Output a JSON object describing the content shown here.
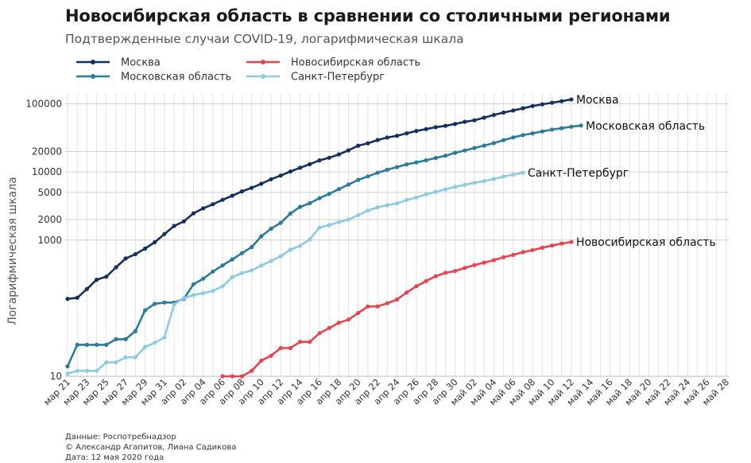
{
  "chart_data": {
    "type": "line",
    "title": "Новосибирская область в сравнении со столичными регионами",
    "subtitle": "Подтвержденные случаи COVID-19, логарифмическая шкала",
    "ylabel": "Логарифмическая шкала",
    "xlabel": "",
    "yscale": "log",
    "ylim": [
      10,
      140000
    ],
    "yticks": [
      10,
      1000,
      2000,
      5000,
      10000,
      20000,
      100000
    ],
    "x_tick_labels": [
      "мар 21",
      "мар 23",
      "мар 25",
      "мар 27",
      "мар 29",
      "мар 31",
      "апр 02",
      "апр 04",
      "апр 06",
      "апр 08",
      "апр 10",
      "апр 12",
      "апр 14",
      "апр 16",
      "апр 18",
      "апр 20",
      "апр 22",
      "апр 24",
      "апр 26",
      "апр 28",
      "апр 30",
      "май 02",
      "май 04",
      "май 06",
      "май 08",
      "май 10",
      "май 12",
      "май 14",
      "май 16",
      "май 18",
      "май 20",
      "май 22",
      "май 24",
      "май 26",
      "май 28"
    ],
    "legend_position": "top-left",
    "grid": true,
    "series": [
      {
        "name": "Москва",
        "color": "#14305e",
        "start_day": 0,
        "values": [
          137,
          142,
          191,
          262,
          290,
          398,
          536,
          620,
          750,
          930,
          1226,
          1613,
          1880,
          2475,
          2923,
          3357,
          3893,
          4484,
          5181,
          5841,
          6698,
          7822,
          8852,
          10158,
          11513,
          13002,
          14776,
          16146,
          18105,
          20754,
          24324,
          26350,
          29433,
          31981,
          33940,
          36897,
          40014,
          42480,
          45351,
          47520,
          50646,
          54520,
          57300,
          62658,
          68606,
          74401,
          79820,
          85973,
          92676,
          98522,
          103945,
          109208,
          115909
        ]
      },
      {
        "name": "Московская область",
        "color": "#2b7b9b",
        "start_day": 0,
        "values": [
          14,
          29,
          29,
          29,
          29,
          35,
          35,
          46,
          93,
          116,
          121,
          121,
          137,
          225,
          271,
          345,
          425,
          521,
          641,
          788,
          1135,
          1469,
          1791,
          2450,
          3071,
          3477,
          4117,
          4763,
          5593,
          6535,
          7640,
          8614,
          9718,
          10751,
          11780,
          12921,
          13785,
          14834,
          16085,
          17313,
          19089,
          20659,
          22470,
          24397,
          26530,
          29235,
          32174,
          34698,
          36897,
          39394,
          41875,
          43920,
          46050,
          48000
        ]
      },
      {
        "name": "Санкт-Петербург",
        "color": "#8ecbe0",
        "start_day": 0,
        "values": [
          11,
          12,
          12,
          12,
          16,
          16,
          19,
          19,
          27,
          31,
          37,
          113,
          141,
          156,
          166,
          179,
          210,
          285,
          327,
          358,
          422,
          493,
          580,
          722,
          820,
          1025,
          1523,
          1661,
          1833,
          2007,
          2333,
          2710,
          3022,
          3245,
          3459,
          3876,
          4214,
          4671,
          5124,
          5541,
          6043,
          6468,
          6925,
          7355,
          7886,
          8545,
          9145,
          9749
        ]
      },
      {
        "name": "Новосибирская область",
        "color": "#e84450",
        "start_day": 16,
        "values": [
          10,
          10,
          10,
          12,
          17,
          20,
          26,
          26,
          32,
          32,
          43,
          51,
          61,
          68,
          85,
          106,
          106,
          118,
          134,
          170,
          210,
          250,
          295,
          330,
          351,
          390,
          428,
          467,
          507,
          558,
          606,
          664,
          711,
          771,
          830,
          890,
          940
        ]
      }
    ],
    "end_labels": [
      "Москва",
      "Московская область",
      "Санкт-Петербург",
      "Новосибирская область"
    ]
  },
  "legend": [
    {
      "label": "Москва",
      "color": "#14305e"
    },
    {
      "label": "Московская область",
      "color": "#2b7b9b"
    },
    {
      "label": "Новосибирская область",
      "color": "#e84450"
    },
    {
      "label": "Санкт-Петербург",
      "color": "#8ecbe0"
    }
  ],
  "footer": {
    "source": "Данные: Роспотребнадзор",
    "authors": "© Александр Агапитов, Лиана Садикова",
    "date": "Дата: 12 мая 2020 года"
  }
}
